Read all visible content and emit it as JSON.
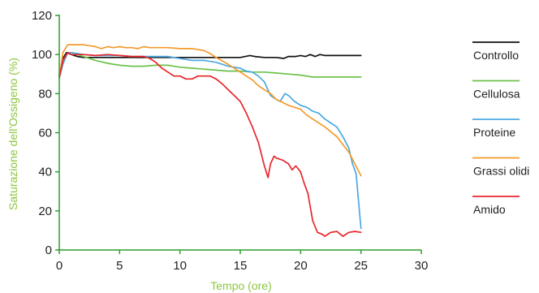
{
  "chart_data": {
    "type": "line",
    "xlabel": "Tempo (ore)",
    "ylabel": "Saturazione dell'Ossigeno (%)",
    "xlim": [
      0,
      30
    ],
    "ylim": [
      0,
      120
    ],
    "xticks": [
      0,
      5,
      10,
      15,
      20,
      25,
      30
    ],
    "yticks": [
      0,
      20,
      40,
      60,
      80,
      100,
      120
    ],
    "axis_color": "#2e9e2e",
    "axis_title_color": "#8cc63f",
    "grid": false,
    "legend_position": "right",
    "series": [
      {
        "name": "Controllo",
        "color": "#111111",
        "points": [
          [
            0,
            89
          ],
          [
            0.3,
            98
          ],
          [
            0.6,
            101
          ],
          [
            1,
            100
          ],
          [
            1.5,
            99
          ],
          [
            2,
            98.5
          ],
          [
            3,
            98.5
          ],
          [
            5,
            98.5
          ],
          [
            8,
            98.5
          ],
          [
            10,
            98.5
          ],
          [
            12,
            98.5
          ],
          [
            15,
            98.5
          ],
          [
            15.8,
            99.5
          ],
          [
            16.2,
            99
          ],
          [
            17,
            98.5
          ],
          [
            18,
            98.5
          ],
          [
            18.6,
            98
          ],
          [
            19,
            99
          ],
          [
            19.6,
            99
          ],
          [
            20,
            99.5
          ],
          [
            20.4,
            99
          ],
          [
            20.8,
            100
          ],
          [
            21.2,
            99
          ],
          [
            21.6,
            100
          ],
          [
            22,
            99.5
          ],
          [
            22.5,
            99.5
          ],
          [
            25,
            99.5
          ]
        ]
      },
      {
        "name": "Cellulosa",
        "color": "#6cc24a",
        "points": [
          [
            0,
            88
          ],
          [
            0.3,
            97
          ],
          [
            0.7,
            101
          ],
          [
            1,
            101
          ],
          [
            1.5,
            100
          ],
          [
            2,
            99
          ],
          [
            3,
            97
          ],
          [
            4,
            95.5
          ],
          [
            5,
            94.5
          ],
          [
            6,
            94
          ],
          [
            7,
            94
          ],
          [
            8,
            94.5
          ],
          [
            9,
            94.5
          ],
          [
            10,
            93.5
          ],
          [
            11,
            93
          ],
          [
            12,
            92.5
          ],
          [
            13,
            92
          ],
          [
            14,
            91.5
          ],
          [
            15,
            91.5
          ],
          [
            16,
            91
          ],
          [
            17,
            91
          ],
          [
            18,
            90.5
          ],
          [
            19,
            90
          ],
          [
            20,
            89.5
          ],
          [
            21,
            88.5
          ],
          [
            22,
            88.5
          ],
          [
            23,
            88.5
          ],
          [
            24,
            88.5
          ],
          [
            25,
            88.5
          ]
        ]
      },
      {
        "name": "Proteine",
        "color": "#4aa8e0",
        "points": [
          [
            0,
            88
          ],
          [
            0.3,
            95
          ],
          [
            0.7,
            101
          ],
          [
            1,
            101
          ],
          [
            1.5,
            100.5
          ],
          [
            2,
            100
          ],
          [
            3,
            99.5
          ],
          [
            4,
            99.5
          ],
          [
            5,
            99.5
          ],
          [
            6,
            99
          ],
          [
            7,
            99
          ],
          [
            8,
            99
          ],
          [
            9,
            99
          ],
          [
            10,
            98
          ],
          [
            10.5,
            97.5
          ],
          [
            11,
            97
          ],
          [
            12,
            97
          ],
          [
            13,
            96
          ],
          [
            14,
            94
          ],
          [
            15,
            93
          ],
          [
            15.5,
            91.5
          ],
          [
            16,
            91
          ],
          [
            16.5,
            89
          ],
          [
            17,
            86
          ],
          [
            17.5,
            79
          ],
          [
            18,
            77
          ],
          [
            18.3,
            76
          ],
          [
            18.7,
            80
          ],
          [
            19,
            79
          ],
          [
            19.5,
            76
          ],
          [
            20,
            74
          ],
          [
            20.5,
            73
          ],
          [
            21,
            71
          ],
          [
            21.5,
            70
          ],
          [
            22,
            67
          ],
          [
            22.5,
            65
          ],
          [
            23,
            63
          ],
          [
            23.5,
            58
          ],
          [
            24,
            52
          ],
          [
            24.3,
            44
          ],
          [
            24.6,
            39
          ],
          [
            25,
            11
          ]
        ]
      },
      {
        "name": "Grassi olidi",
        "color": "#f29b2c",
        "points": [
          [
            0,
            88
          ],
          [
            0.3,
            101
          ],
          [
            0.7,
            105
          ],
          [
            1,
            105
          ],
          [
            2,
            105
          ],
          [
            2.5,
            104.5
          ],
          [
            3,
            104
          ],
          [
            3.5,
            103
          ],
          [
            4,
            104
          ],
          [
            4.5,
            103.5
          ],
          [
            5,
            104
          ],
          [
            5.5,
            103.5
          ],
          [
            6,
            103.5
          ],
          [
            6.5,
            103
          ],
          [
            7,
            104
          ],
          [
            7.5,
            103.5
          ],
          [
            8,
            103.5
          ],
          [
            9,
            103.5
          ],
          [
            10,
            103
          ],
          [
            11,
            103
          ],
          [
            12,
            102
          ],
          [
            12.5,
            100.5
          ],
          [
            13,
            98.5
          ],
          [
            14,
            95
          ],
          [
            15,
            91
          ],
          [
            16,
            87
          ],
          [
            16.5,
            84
          ],
          [
            17,
            82
          ],
          [
            17.5,
            80
          ],
          [
            18,
            77
          ],
          [
            19,
            74
          ],
          [
            20,
            72
          ],
          [
            20.5,
            69
          ],
          [
            21,
            67
          ],
          [
            22,
            63
          ],
          [
            23,
            58
          ],
          [
            24,
            50
          ],
          [
            24.5,
            44
          ],
          [
            25,
            38
          ]
        ]
      },
      {
        "name": "Amido",
        "color": "#e8262c",
        "points": [
          [
            0,
            88
          ],
          [
            0.3,
            97
          ],
          [
            0.7,
            101
          ],
          [
            1,
            100
          ],
          [
            2,
            100
          ],
          [
            3,
            99.5
          ],
          [
            4,
            100
          ],
          [
            5,
            99.5
          ],
          [
            6,
            99
          ],
          [
            7,
            99
          ],
          [
            7.5,
            98
          ],
          [
            8,
            96
          ],
          [
            8.5,
            93
          ],
          [
            9,
            91
          ],
          [
            9.5,
            89
          ],
          [
            10,
            89
          ],
          [
            10.5,
            87.5
          ],
          [
            11,
            87.5
          ],
          [
            11.5,
            89
          ],
          [
            12,
            89
          ],
          [
            12.5,
            89
          ],
          [
            13,
            87.5
          ],
          [
            13.5,
            85
          ],
          [
            14,
            82
          ],
          [
            14.5,
            79
          ],
          [
            15,
            76
          ],
          [
            15.5,
            70
          ],
          [
            16,
            63
          ],
          [
            16.5,
            55
          ],
          [
            17,
            43
          ],
          [
            17.3,
            37
          ],
          [
            17.5,
            44
          ],
          [
            17.8,
            48
          ],
          [
            18,
            47
          ],
          [
            18.5,
            46
          ],
          [
            19,
            44
          ],
          [
            19.3,
            41
          ],
          [
            19.6,
            43
          ],
          [
            20,
            40
          ],
          [
            20.3,
            34
          ],
          [
            20.6,
            29
          ],
          [
            21,
            15
          ],
          [
            21.4,
            9
          ],
          [
            21.8,
            8
          ],
          [
            22,
            7
          ],
          [
            22.5,
            9
          ],
          [
            23,
            9.5
          ],
          [
            23.5,
            7
          ],
          [
            24,
            9
          ],
          [
            24.5,
            9.5
          ],
          [
            25,
            9
          ]
        ]
      }
    ]
  }
}
